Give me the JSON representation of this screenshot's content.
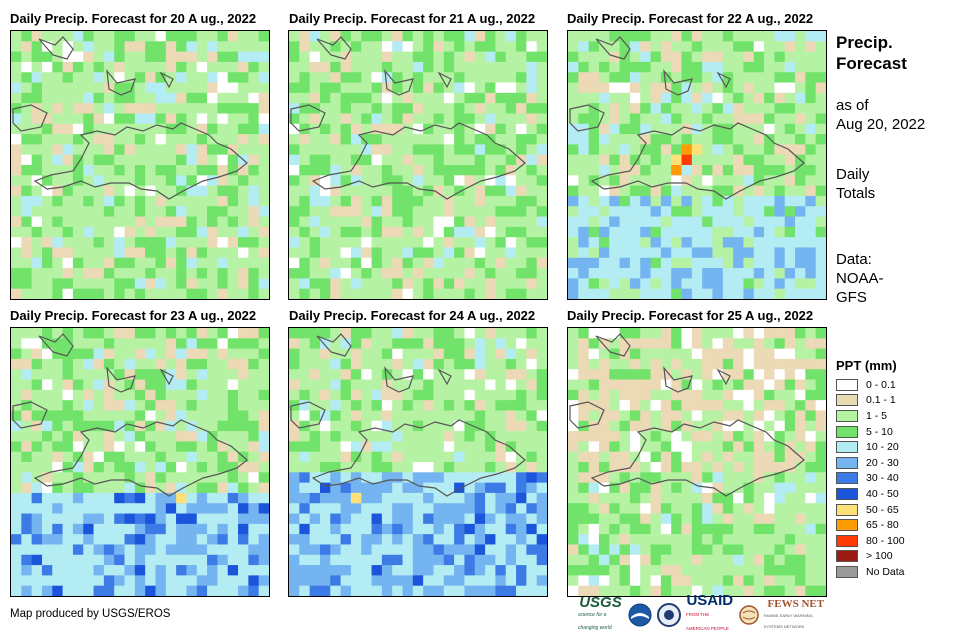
{
  "panels": [
    {
      "title": "Daily  Precip. Forecast for 20 A ug., 2022"
    },
    {
      "title": "Daily  Precip. Forecast for 21 A ug., 2022"
    },
    {
      "title": "Daily  Precip. Forecast for 22 A ug., 2022"
    },
    {
      "title": "Daily  Precip. Forecast for 23 A ug., 2022"
    },
    {
      "title": "Daily  Precip. Forecast for 24 A ug., 2022"
    },
    {
      "title": "Daily  Precip. Forecast for 25 A ug., 2022"
    }
  ],
  "side": {
    "title_line1": "Precip.",
    "title_line2": "Forecast",
    "asof_line1": "as of",
    "asof_line2": "Aug 20, 2022",
    "daily_line1": "Daily",
    "daily_line2": "Totals",
    "data_line1": "Data:",
    "data_line2": "NOAA-",
    "data_line3": "GFS"
  },
  "legend": {
    "title": "PPT (mm)",
    "items": [
      {
        "label": "0 - 0.1",
        "color": "#ffffff"
      },
      {
        "label": "0.1 - 1",
        "color": "#ecd9b5"
      },
      {
        "label": "1 - 5",
        "color": "#b6f2a4"
      },
      {
        "label": "5 - 10",
        "color": "#72e36a"
      },
      {
        "label": "10 - 20",
        "color": "#b4ecf3"
      },
      {
        "label": "20 - 30",
        "color": "#74b4f0"
      },
      {
        "label": "30 - 40",
        "color": "#3c7be6"
      },
      {
        "label": "40 - 50",
        "color": "#1a55dc"
      },
      {
        "label": "50 - 65",
        "color": "#ffe17a"
      },
      {
        "label": "65 - 80",
        "color": "#ff9b05"
      },
      {
        "label": "80 - 100",
        "color": "#ff3a05"
      },
      {
        "label": "> 100",
        "color": "#9b1c14"
      },
      {
        "label": "No Data",
        "color": "#9a9a9a"
      }
    ]
  },
  "credit": "Map produced by USGS/EROS",
  "logos": {
    "usgs_text": "USGS",
    "usgs_tagline": "science for a changing world",
    "usaid_text": "USAID",
    "usaid_tagline": "FROM THE AMERICAN PEOPLE",
    "fews_text": "FEWS NET",
    "fews_tagline": "FAMINE EARLY WARNING SYSTEMS NETWORK"
  }
}
